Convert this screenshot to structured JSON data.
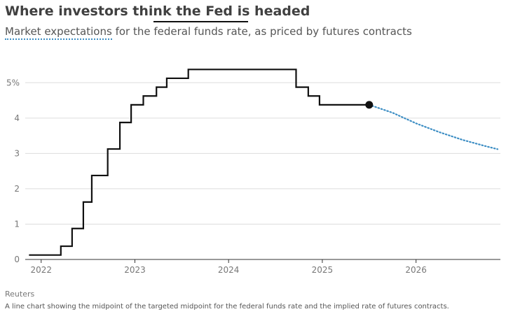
{
  "header": {
    "title": "Where investors think the Fed is headed",
    "subtitle_market": "Market expectations",
    "subtitle_mid": " for the ",
    "subtitle_fed": "federal funds rate",
    "subtitle_end": ", as priced by futures contracts"
  },
  "footer": {
    "source": "Reuters",
    "description": "A line chart showing the midpoint of the targeted midpoint for the federal funds rate and the implied rate of futures contracts."
  },
  "colors": {
    "fed_line": "#111111",
    "futures_line": "#3d8ec4",
    "grid": "#dddddd",
    "axis": "#333333"
  },
  "chart_data": {
    "type": "line",
    "title": "Where investors think the Fed is headed",
    "xlabel": "",
    "ylabel": "",
    "xlim": [
      2021.83,
      2026.9
    ],
    "ylim": [
      0,
      5.5
    ],
    "x_ticks": [
      2022,
      2023,
      2024,
      2025,
      2026
    ],
    "x_tick_labels": [
      "2022",
      "2023",
      "2024",
      "2025",
      "2026"
    ],
    "y_ticks": [
      0,
      1,
      2,
      3,
      4,
      5
    ],
    "y_tick_labels": [
      "0",
      "1",
      "2",
      "3",
      "4",
      "5%"
    ],
    "grid": "horizontal",
    "series": [
      {
        "key": "fed",
        "style": "step",
        "x": [
          2021.87,
          2022.21,
          2022.33,
          2022.45,
          2022.54,
          2022.71,
          2022.84,
          2022.96,
          2023.09,
          2023.23,
          2023.34,
          2023.57,
          2024.72,
          2024.85,
          2024.97,
          2025.5
        ],
        "y": [
          0.125,
          0.375,
          0.875,
          1.625,
          2.375,
          3.125,
          3.875,
          4.375,
          4.625,
          4.875,
          5.125,
          5.375,
          4.875,
          4.625,
          4.375,
          4.375
        ]
      },
      {
        "key": "futures",
        "style": "dotted",
        "x": [
          2025.5,
          2025.75,
          2026.0,
          2026.25,
          2026.5,
          2026.75,
          2026.87
        ],
        "y": [
          4.375,
          4.15,
          3.85,
          3.6,
          3.38,
          3.2,
          3.12
        ]
      }
    ]
  }
}
